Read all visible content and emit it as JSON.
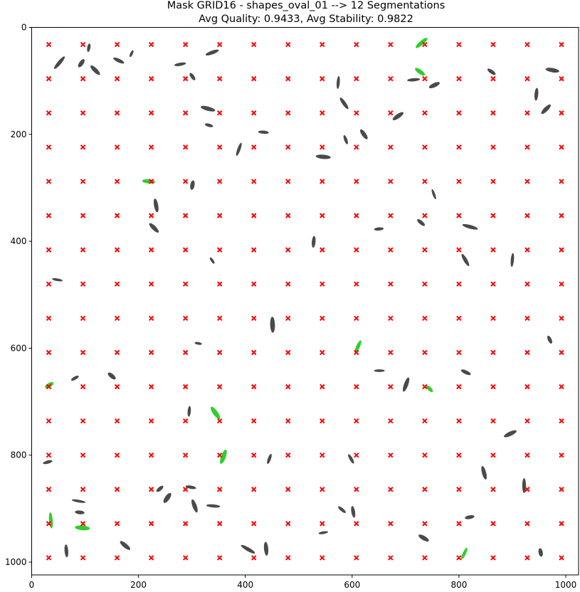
{
  "chart_data": {
    "type": "scatter",
    "title": "Mask GRID16 - shapes_oval_01 --> 12 Segmentations",
    "subtitle": "Avg Quality: 0.9433, Avg Stability: 0.9822",
    "xlabel": "",
    "ylabel": "",
    "xlim": [
      0,
      1024
    ],
    "ylim": [
      1024,
      0
    ],
    "y_inverted": true,
    "grid": false,
    "x_ticks": [
      0,
      200,
      400,
      600,
      800,
      1000
    ],
    "y_ticks": [
      0,
      200,
      400,
      600,
      800,
      1000
    ],
    "grid_points": {
      "marker": "x",
      "color": "#ff0000",
      "n": 16,
      "x": [
        32,
        96,
        160,
        224,
        288,
        352,
        416,
        480,
        544,
        608,
        672,
        736,
        800,
        864,
        928,
        992
      ],
      "y": [
        32,
        96,
        160,
        224,
        288,
        352,
        416,
        480,
        544,
        608,
        672,
        736,
        800,
        864,
        928,
        992
      ]
    },
    "ovals": [
      {
        "x": 52,
        "y": 66,
        "w": 30,
        "h": 7,
        "angle": -50,
        "color": "#2a2a2a"
      },
      {
        "x": 93,
        "y": 67,
        "w": 18,
        "h": 8,
        "angle": -55,
        "color": "#2a2a2a"
      },
      {
        "x": 107,
        "y": 38,
        "w": 16,
        "h": 6,
        "angle": -80,
        "color": "#2a2a2a"
      },
      {
        "x": 119,
        "y": 80,
        "w": 24,
        "h": 8,
        "angle": 45,
        "color": "#2a2a2a"
      },
      {
        "x": 163,
        "y": 62,
        "w": 22,
        "h": 7,
        "angle": 25,
        "color": "#2a2a2a"
      },
      {
        "x": 187,
        "y": 49,
        "w": 14,
        "h": 5,
        "angle": -65,
        "color": "#2a2a2a"
      },
      {
        "x": 278,
        "y": 69,
        "w": 22,
        "h": 6,
        "angle": -10,
        "color": "#2a2a2a"
      },
      {
        "x": 301,
        "y": 92,
        "w": 16,
        "h": 7,
        "angle": 55,
        "color": "#2a2a2a"
      },
      {
        "x": 338,
        "y": 47,
        "w": 26,
        "h": 7,
        "angle": -20,
        "color": "#2a2a2a"
      },
      {
        "x": 730,
        "y": 29,
        "w": 28,
        "h": 8,
        "angle": -40,
        "color": "#22cc22"
      },
      {
        "x": 727,
        "y": 83,
        "w": 22,
        "h": 8,
        "angle": 35,
        "color": "#22cc22"
      },
      {
        "x": 715,
        "y": 98,
        "w": 24,
        "h": 6,
        "angle": -5,
        "color": "#2a2a2a"
      },
      {
        "x": 754,
        "y": 108,
        "w": 22,
        "h": 8,
        "angle": -25,
        "color": "#2a2a2a"
      },
      {
        "x": 861,
        "y": 83,
        "w": 18,
        "h": 7,
        "angle": 35,
        "color": "#2a2a2a"
      },
      {
        "x": 975,
        "y": 80,
        "w": 26,
        "h": 8,
        "angle": 10,
        "color": "#2a2a2a"
      },
      {
        "x": 574,
        "y": 103,
        "w": 24,
        "h": 6,
        "angle": -85,
        "color": "#2a2a2a"
      },
      {
        "x": 585,
        "y": 142,
        "w": 26,
        "h": 7,
        "angle": 55,
        "color": "#2a2a2a"
      },
      {
        "x": 330,
        "y": 152,
        "w": 28,
        "h": 8,
        "angle": 15,
        "color": "#2a2a2a"
      },
      {
        "x": 332,
        "y": 183,
        "w": 16,
        "h": 6,
        "angle": 15,
        "color": "#2a2a2a"
      },
      {
        "x": 434,
        "y": 196,
        "w": 20,
        "h": 6,
        "angle": 5,
        "color": "#2a2a2a"
      },
      {
        "x": 388,
        "y": 228,
        "w": 26,
        "h": 6,
        "angle": -70,
        "color": "#2a2a2a"
      },
      {
        "x": 546,
        "y": 242,
        "w": 28,
        "h": 8,
        "angle": 5,
        "color": "#2a2a2a"
      },
      {
        "x": 588,
        "y": 210,
        "w": 18,
        "h": 6,
        "angle": 70,
        "color": "#2a2a2a"
      },
      {
        "x": 622,
        "y": 200,
        "w": 22,
        "h": 8,
        "angle": 55,
        "color": "#2a2a2a"
      },
      {
        "x": 686,
        "y": 166,
        "w": 24,
        "h": 8,
        "angle": -35,
        "color": "#2a2a2a"
      },
      {
        "x": 945,
        "y": 125,
        "w": 24,
        "h": 7,
        "angle": -85,
        "color": "#2a2a2a"
      },
      {
        "x": 963,
        "y": 153,
        "w": 24,
        "h": 8,
        "angle": -45,
        "color": "#2a2a2a"
      },
      {
        "x": 219,
        "y": 288,
        "w": 24,
        "h": 8,
        "angle": 5,
        "color": "#22cc22"
      },
      {
        "x": 301,
        "y": 295,
        "w": 18,
        "h": 8,
        "angle": -80,
        "color": "#2a2a2a"
      },
      {
        "x": 233,
        "y": 333,
        "w": 26,
        "h": 8,
        "angle": 80,
        "color": "#2a2a2a"
      },
      {
        "x": 229,
        "y": 375,
        "w": 24,
        "h": 8,
        "angle": 45,
        "color": "#2a2a2a"
      },
      {
        "x": 753,
        "y": 312,
        "w": 20,
        "h": 5,
        "angle": 70,
        "color": "#2a2a2a"
      },
      {
        "x": 729,
        "y": 365,
        "w": 18,
        "h": 7,
        "angle": 40,
        "color": "#2a2a2a"
      },
      {
        "x": 650,
        "y": 377,
        "w": 18,
        "h": 6,
        "angle": -5,
        "color": "#2a2a2a"
      },
      {
        "x": 821,
        "y": 373,
        "w": 30,
        "h": 7,
        "angle": 15,
        "color": "#2a2a2a"
      },
      {
        "x": 528,
        "y": 401,
        "w": 22,
        "h": 7,
        "angle": -85,
        "color": "#2a2a2a"
      },
      {
        "x": 338,
        "y": 436,
        "w": 14,
        "h": 5,
        "angle": 55,
        "color": "#2a2a2a"
      },
      {
        "x": 812,
        "y": 435,
        "w": 26,
        "h": 7,
        "angle": 60,
        "color": "#2a2a2a"
      },
      {
        "x": 900,
        "y": 435,
        "w": 26,
        "h": 6,
        "angle": -85,
        "color": "#2a2a2a"
      },
      {
        "x": 48,
        "y": 472,
        "w": 20,
        "h": 5,
        "angle": 10,
        "color": "#2a2a2a"
      },
      {
        "x": 451,
        "y": 556,
        "w": 30,
        "h": 9,
        "angle": 88,
        "color": "#2a2a2a"
      },
      {
        "x": 312,
        "y": 591,
        "w": 14,
        "h": 5,
        "angle": 10,
        "color": "#2a2a2a"
      },
      {
        "x": 611,
        "y": 597,
        "w": 26,
        "h": 7,
        "angle": -65,
        "color": "#22cc22"
      },
      {
        "x": 970,
        "y": 584,
        "w": 16,
        "h": 7,
        "angle": 65,
        "color": "#2a2a2a"
      },
      {
        "x": 81,
        "y": 656,
        "w": 16,
        "h": 6,
        "angle": -30,
        "color": "#2a2a2a"
      },
      {
        "x": 150,
        "y": 652,
        "w": 18,
        "h": 8,
        "angle": 40,
        "color": "#2a2a2a"
      },
      {
        "x": 33,
        "y": 669,
        "w": 18,
        "h": 8,
        "angle": -30,
        "color": "#22cc22"
      },
      {
        "x": 651,
        "y": 642,
        "w": 20,
        "h": 5,
        "angle": 0,
        "color": "#2a2a2a"
      },
      {
        "x": 701,
        "y": 668,
        "w": 28,
        "h": 8,
        "angle": -70,
        "color": "#2a2a2a"
      },
      {
        "x": 745,
        "y": 676,
        "w": 16,
        "h": 7,
        "angle": 45,
        "color": "#22cc22"
      },
      {
        "x": 813,
        "y": 645,
        "w": 20,
        "h": 7,
        "angle": 25,
        "color": "#2a2a2a"
      },
      {
        "x": 295,
        "y": 718,
        "w": 20,
        "h": 6,
        "angle": -85,
        "color": "#2a2a2a"
      },
      {
        "x": 344,
        "y": 721,
        "w": 28,
        "h": 9,
        "angle": 55,
        "color": "#22cc22"
      },
      {
        "x": 359,
        "y": 803,
        "w": 28,
        "h": 9,
        "angle": -70,
        "color": "#22cc22"
      },
      {
        "x": 896,
        "y": 760,
        "w": 26,
        "h": 8,
        "angle": -25,
        "color": "#2a2a2a"
      },
      {
        "x": 30,
        "y": 813,
        "w": 18,
        "h": 6,
        "angle": -15,
        "color": "#2a2a2a"
      },
      {
        "x": 445,
        "y": 807,
        "w": 20,
        "h": 6,
        "angle": -70,
        "color": "#2a2a2a"
      },
      {
        "x": 598,
        "y": 807,
        "w": 20,
        "h": 6,
        "angle": 60,
        "color": "#2a2a2a"
      },
      {
        "x": 847,
        "y": 833,
        "w": 26,
        "h": 8,
        "angle": 75,
        "color": "#2a2a2a"
      },
      {
        "x": 922,
        "y": 857,
        "w": 28,
        "h": 7,
        "angle": 90,
        "color": "#2a2a2a"
      },
      {
        "x": 240,
        "y": 863,
        "w": 16,
        "h": 7,
        "angle": -40,
        "color": "#2a2a2a"
      },
      {
        "x": 254,
        "y": 880,
        "w": 22,
        "h": 9,
        "angle": -55,
        "color": "#2a2a2a"
      },
      {
        "x": 298,
        "y": 860,
        "w": 20,
        "h": 6,
        "angle": 10,
        "color": "#2a2a2a"
      },
      {
        "x": 88,
        "y": 886,
        "w": 26,
        "h": 5,
        "angle": 10,
        "color": "#2a2a2a"
      },
      {
        "x": 90,
        "y": 907,
        "w": 18,
        "h": 7,
        "angle": 5,
        "color": "#2a2a2a"
      },
      {
        "x": 305,
        "y": 895,
        "w": 26,
        "h": 8,
        "angle": 70,
        "color": "#2a2a2a"
      },
      {
        "x": 340,
        "y": 895,
        "w": 26,
        "h": 6,
        "angle": 5,
        "color": "#2a2a2a"
      },
      {
        "x": 36,
        "y": 922,
        "w": 30,
        "h": 7,
        "angle": 85,
        "color": "#22cc22"
      },
      {
        "x": 95,
        "y": 936,
        "w": 28,
        "h": 9,
        "angle": 5,
        "color": "#22cc22"
      },
      {
        "x": 581,
        "y": 902,
        "w": 18,
        "h": 6,
        "angle": 40,
        "color": "#2a2a2a"
      },
      {
        "x": 602,
        "y": 906,
        "w": 22,
        "h": 7,
        "angle": 80,
        "color": "#2a2a2a"
      },
      {
        "x": 820,
        "y": 916,
        "w": 18,
        "h": 7,
        "angle": -10,
        "color": "#2a2a2a"
      },
      {
        "x": 546,
        "y": 945,
        "w": 18,
        "h": 5,
        "angle": -10,
        "color": "#2a2a2a"
      },
      {
        "x": 734,
        "y": 955,
        "w": 22,
        "h": 8,
        "angle": 30,
        "color": "#2a2a2a"
      },
      {
        "x": 65,
        "y": 979,
        "w": 24,
        "h": 7,
        "angle": 85,
        "color": "#2a2a2a"
      },
      {
        "x": 175,
        "y": 969,
        "w": 24,
        "h": 8,
        "angle": 40,
        "color": "#2a2a2a"
      },
      {
        "x": 405,
        "y": 976,
        "w": 30,
        "h": 7,
        "angle": 30,
        "color": "#2a2a2a"
      },
      {
        "x": 439,
        "y": 975,
        "w": 26,
        "h": 8,
        "angle": 85,
        "color": "#2a2a2a"
      },
      {
        "x": 810,
        "y": 984,
        "w": 24,
        "h": 6,
        "angle": -65,
        "color": "#22cc22"
      },
      {
        "x": 953,
        "y": 982,
        "w": 16,
        "h": 8,
        "angle": 80,
        "color": "#2a2a2a"
      }
    ]
  }
}
